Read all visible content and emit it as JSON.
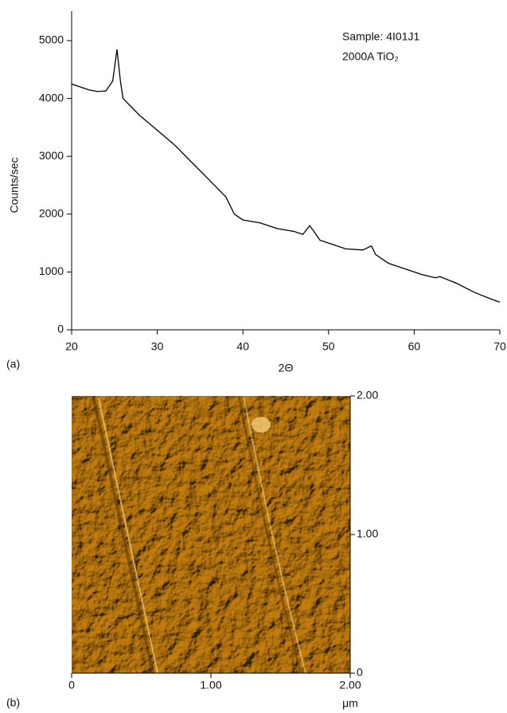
{
  "chart_data": [
    {
      "type": "line",
      "panel_label": "(a)",
      "xlabel": "2Θ",
      "ylabel": "Counts/sec",
      "annotations": [
        "Sample: 4I01J1",
        "2000A TiO₂"
      ],
      "color": "#000000",
      "x": [
        20,
        21,
        22,
        23,
        24,
        24.8,
        25.3,
        25.7,
        26,
        27,
        28,
        30,
        32,
        34,
        36,
        38,
        39,
        40,
        42,
        44,
        46,
        47,
        47.8,
        48.3,
        49,
        50,
        52,
        54,
        55,
        55.5,
        57,
        59,
        61,
        62.5,
        63,
        65,
        67,
        69,
        70
      ],
      "values": [
        4250,
        4200,
        4150,
        4120,
        4130,
        4300,
        4850,
        4300,
        4000,
        3850,
        3700,
        3450,
        3200,
        2900,
        2600,
        2300,
        2000,
        1900,
        1850,
        1750,
        1700,
        1650,
        1800,
        1700,
        1550,
        1500,
        1400,
        1380,
        1450,
        1300,
        1150,
        1050,
        950,
        900,
        920,
        800,
        650,
        530,
        480
      ],
      "xlim": [
        20,
        70
      ],
      "xticks": [
        20,
        30,
        40,
        50,
        60,
        70
      ],
      "ylim": [
        0,
        5000
      ],
      "yticks": [
        0,
        1000,
        2000,
        3000,
        4000,
        5000
      ]
    },
    {
      "type": "image",
      "panel_label": "(b)",
      "xlabel": "μm",
      "xlim": [
        0,
        2
      ],
      "xticks": [
        0,
        {
          "value": 1,
          "label": "1.00"
        },
        {
          "value": 2,
          "label": "2.00"
        }
      ],
      "y2lim": [
        0,
        2
      ],
      "y2ticks": [
        0,
        {
          "value": 1,
          "label": "1.00"
        },
        {
          "value": 2,
          "label": "2.00"
        }
      ]
    }
  ]
}
